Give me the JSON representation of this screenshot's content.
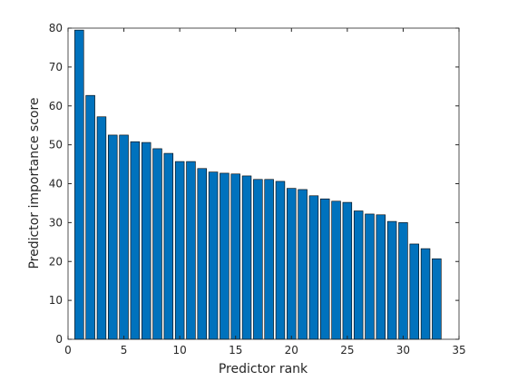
{
  "chart_data": {
    "type": "bar",
    "xlabel": "Predictor rank",
    "ylabel": "Predictor importance score",
    "x": [
      1,
      2,
      3,
      4,
      5,
      6,
      7,
      8,
      9,
      10,
      11,
      12,
      13,
      14,
      15,
      16,
      17,
      18,
      19,
      20,
      21,
      22,
      23,
      24,
      25,
      26,
      27,
      28,
      29,
      30,
      31,
      32,
      33
    ],
    "values": [
      79.5,
      62.7,
      57.2,
      52.5,
      52.5,
      50.8,
      50.6,
      49.0,
      47.8,
      45.7,
      45.7,
      43.9,
      43.0,
      42.7,
      42.5,
      42.0,
      41.1,
      41.1,
      40.6,
      38.8,
      38.5,
      36.9,
      36.1,
      35.5,
      35.2,
      33.0,
      32.2,
      32.0,
      30.3,
      30.0,
      24.5,
      23.3,
      20.7
    ],
    "color": "#0072bd",
    "xlim": [
      0,
      35
    ],
    "xticks": [
      0,
      5,
      10,
      15,
      20,
      25,
      30,
      35
    ],
    "ylim": [
      0,
      80
    ],
    "yticks": [
      0,
      10,
      20,
      30,
      40,
      50,
      60,
      70,
      80
    ]
  }
}
